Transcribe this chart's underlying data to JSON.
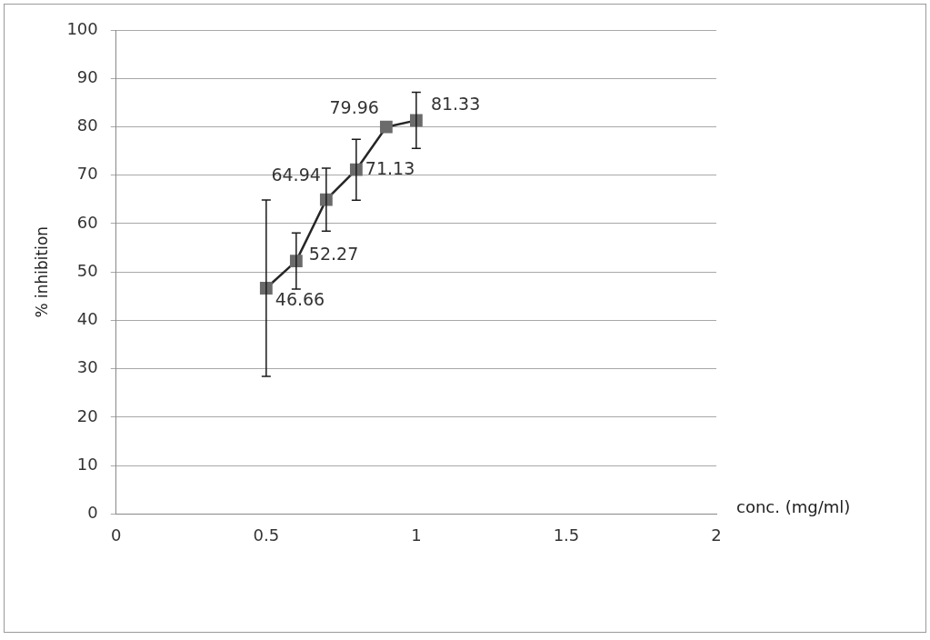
{
  "chart_data": {
    "type": "line",
    "xlabel": "conc. (mg/ml)",
    "ylabel": "% inhibition",
    "x": [
      0.5,
      0.6,
      0.7,
      0.8,
      0.9,
      1
    ],
    "series": [
      {
        "color": "#6b6b6b",
        "values": [
          46.66,
          52.27,
          64.94,
          71.13,
          79.96,
          81.33
        ],
        "errors": [
          18.2,
          5.8,
          6.5,
          6.3,
          null,
          5.8
        ]
      }
    ],
    "xlim": [
      0,
      2
    ],
    "xticks": [
      0,
      0.5,
      1,
      1.5,
      2
    ],
    "ylim": [
      0,
      100
    ],
    "yticks": [
      0,
      10,
      20,
      30,
      40,
      50,
      60,
      70,
      80,
      90,
      100
    ],
    "grid": "y",
    "legend": false,
    "marker": "square",
    "line_style": "solid",
    "data_labels": true
  }
}
